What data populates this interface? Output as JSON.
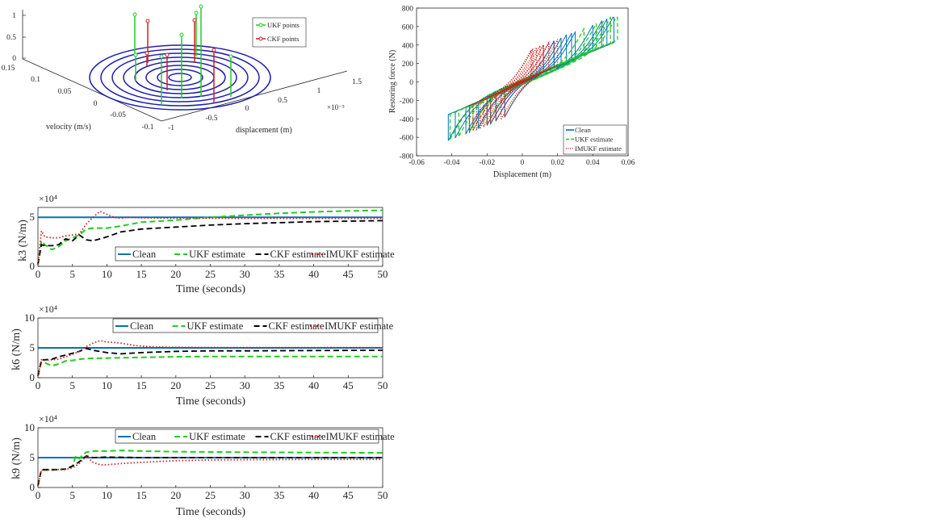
{
  "colors": {
    "clean": "#0072bd",
    "ukf": "#22cc22",
    "ckf": "#000000",
    "imukf": "#cc2020",
    "ellipse": "#1f1fb0",
    "ukf_point": "#22cc22",
    "ckf_point": "#cc2020"
  },
  "chart_data": [
    {
      "id": "sigma3d",
      "type": "scatter",
      "subtype": "3d-stem",
      "xlabel": "displacement (m)",
      "ylabel": "velocity (m/s)",
      "x_exponent": "×10⁻³",
      "x_ticks": [
        "-1",
        "-0.5",
        "0",
        "0.5",
        "1",
        "1.5"
      ],
      "y_ticks": [
        "-0.1",
        "-0.05",
        "0",
        "0.05",
        "0.1",
        "0.15"
      ],
      "z_ticks": [
        "0",
        "0.5",
        "1"
      ],
      "legend": [
        "UKF points",
        "CKF points"
      ],
      "legend_position": "top-right",
      "contour_rings": 8
    },
    {
      "id": "hysteresis",
      "type": "line",
      "xlabel": "Displacement (m)",
      "ylabel": "Restoring force (N)",
      "xlim": [
        -0.06,
        0.06
      ],
      "ylim": [
        -800,
        800
      ],
      "x_ticks": [
        "-0.06",
        "-0.04",
        "-0.02",
        "0",
        "0.02",
        "0.04",
        "0.06"
      ],
      "y_ticks": [
        "-800",
        "-600",
        "-400",
        "-200",
        "0",
        "200",
        "400",
        "600",
        "800"
      ],
      "legend": [
        "Clean",
        "UKF estimate",
        "IMUKF estimate"
      ],
      "legend_position": "bottom-right",
      "series": [
        {
          "name": "Clean",
          "style": "solid",
          "loops": [
            [
              -0.042,
              0.048,
              20
            ],
            [
              -0.038,
              0.045,
              20
            ],
            [
              -0.03,
              0.04,
              25
            ],
            [
              -0.025,
              0.03,
              20
            ],
            [
              -0.02,
              0.028,
              15
            ],
            [
              -0.015,
              0.022,
              20
            ],
            [
              -0.032,
              0.052,
              15
            ],
            [
              -0.01,
              0.018,
              25
            ],
            [
              -0.018,
              0.025,
              10
            ]
          ]
        },
        {
          "name": "UKF estimate",
          "style": "dashed",
          "loops": [
            [
              -0.041,
              0.054,
              26
            ],
            [
              -0.036,
              0.05,
              22
            ],
            [
              -0.028,
              0.042,
              24
            ],
            [
              -0.02,
              0.035,
              24
            ],
            [
              -0.03,
              0.046,
              30
            ]
          ]
        },
        {
          "name": "IMUKF estimate",
          "style": "dotted",
          "loops": [
            [
              -0.03,
              0.012,
              18
            ],
            [
              -0.024,
              0.018,
              16
            ],
            [
              -0.018,
              0.015,
              20
            ],
            [
              -0.012,
              0.008,
              15
            ],
            [
              -0.028,
              0.02,
              22
            ],
            [
              -0.02,
              0.01,
              12
            ],
            [
              -0.015,
              0.005,
              18
            ],
            [
              -0.026,
              0.015,
              14
            ],
            [
              -0.01,
              0.012,
              20
            ],
            [
              -0.022,
              0.006,
              10
            ]
          ]
        }
      ]
    },
    {
      "id": "k3",
      "type": "line",
      "xlabel": "Time (seconds)",
      "ylabel": "k3 (N/m)",
      "y_exponent": "×10⁴",
      "xlim": [
        0,
        50
      ],
      "ylim": [
        0,
        6
      ],
      "x_ticks": [
        "0",
        "5",
        "10",
        "15",
        "20",
        "25",
        "30",
        "35",
        "40",
        "45",
        "50"
      ],
      "y_ticks": [
        {
          "v": 0,
          "t": "0"
        },
        {
          "v": 5,
          "t": "5"
        }
      ],
      "legend_position": "bottom-right",
      "series": [
        {
          "name": "Clean",
          "style": "solid",
          "x": [
            0,
            50
          ],
          "y": [
            5,
            5
          ]
        },
        {
          "name": "UKF estimate",
          "style": "dashed",
          "x": [
            0,
            0.5,
            1,
            2,
            3,
            4,
            5,
            6,
            7,
            8,
            10,
            12,
            15,
            20,
            25,
            30,
            35,
            40,
            45,
            50
          ],
          "y": [
            0.2,
            2.6,
            2.2,
            1.7,
            2.0,
            2.6,
            2.9,
            3.2,
            3.8,
            3.9,
            3.9,
            4.1,
            4.5,
            4.7,
            5.0,
            5.2,
            5.4,
            5.55,
            5.65,
            5.7
          ]
        },
        {
          "name": "CKF estimate",
          "style": "dashed",
          "x": [
            0,
            0.5,
            1,
            2,
            3,
            4,
            5,
            6,
            7,
            8,
            10,
            12,
            15,
            20,
            25,
            30,
            35,
            40,
            45,
            50
          ],
          "y": [
            0.2,
            2.2,
            2.1,
            2.1,
            2.2,
            2.8,
            2.6,
            3.2,
            2.7,
            2.6,
            3.0,
            3.5,
            3.8,
            4.0,
            4.2,
            4.35,
            4.45,
            4.55,
            4.6,
            4.65
          ]
        },
        {
          "name": "IMUKF estimate",
          "style": "dotted",
          "x": [
            0,
            0.5,
            1,
            2,
            3,
            4,
            5,
            6,
            7,
            8,
            9,
            10,
            11,
            12,
            13,
            15,
            20,
            25,
            30,
            35,
            40,
            45,
            50
          ],
          "y": [
            0.2,
            3.6,
            3.0,
            2.9,
            2.9,
            3.1,
            3.2,
            3.3,
            4.3,
            5.0,
            5.6,
            5.3,
            5.0,
            4.9,
            5.0,
            4.95,
            4.9,
            4.9,
            4.88,
            4.88,
            4.88,
            4.88,
            4.88
          ]
        }
      ]
    },
    {
      "id": "k6",
      "type": "line",
      "xlabel": "Time (seconds)",
      "ylabel": "k6 (N/m)",
      "y_exponent": "×10⁴",
      "xlim": [
        0,
        50
      ],
      "ylim": [
        0,
        10
      ],
      "x_ticks": [
        "0",
        "5",
        "10",
        "15",
        "20",
        "25",
        "30",
        "35",
        "40",
        "45",
        "50"
      ],
      "y_ticks": [
        {
          "v": 0,
          "t": "0"
        },
        {
          "v": 5,
          "t": "5"
        },
        {
          "v": 10,
          "t": "10"
        }
      ],
      "legend_position": "top-right",
      "series": [
        {
          "name": "Clean",
          "style": "solid",
          "x": [
            0,
            50
          ],
          "y": [
            5,
            5
          ]
        },
        {
          "name": "UKF estimate",
          "style": "dashed",
          "x": [
            0,
            0.5,
            1,
            2,
            3,
            4,
            5,
            6,
            7,
            8,
            10,
            15,
            20,
            25,
            30,
            40,
            50
          ],
          "y": [
            0.3,
            2.6,
            2.5,
            2.0,
            2.3,
            2.8,
            2.9,
            3.1,
            3.2,
            3.25,
            3.3,
            3.4,
            3.5,
            3.55,
            3.55,
            3.55,
            3.55
          ]
        },
        {
          "name": "CKF estimate",
          "style": "dashed",
          "x": [
            0,
            0.5,
            1,
            2,
            3,
            4,
            5,
            6,
            7,
            8,
            10,
            12,
            15,
            20,
            25,
            30,
            40,
            50
          ],
          "y": [
            0.3,
            3.0,
            3.0,
            3.1,
            3.5,
            3.8,
            4.1,
            4.4,
            4.9,
            4.6,
            4.2,
            4.0,
            4.2,
            4.4,
            4.5,
            4.5,
            4.55,
            4.6
          ]
        },
        {
          "name": "IMUKF estimate",
          "style": "dotted",
          "x": [
            0,
            0.5,
            1,
            2,
            3,
            4,
            5,
            6,
            7,
            8,
            9,
            10,
            12,
            14,
            16,
            20,
            25,
            30,
            40,
            50
          ],
          "y": [
            0.3,
            3.0,
            2.9,
            3.0,
            3.1,
            3.5,
            3.9,
            4.4,
            5.2,
            5.8,
            6.2,
            6.0,
            5.8,
            5.4,
            5.2,
            5.1,
            5.05,
            5.05,
            5.05,
            5.05
          ]
        }
      ]
    },
    {
      "id": "k9",
      "type": "line",
      "xlabel": "Time (seconds)",
      "ylabel": "k9 (N/m)",
      "y_exponent": "×10⁴",
      "xlim": [
        0,
        50
      ],
      "ylim": [
        0,
        10
      ],
      "x_ticks": [
        "0",
        "5",
        "10",
        "15",
        "20",
        "25",
        "30",
        "35",
        "40",
        "45",
        "50"
      ],
      "y_ticks": [
        {
          "v": 0,
          "t": "0"
        },
        {
          "v": 5,
          "t": "5"
        },
        {
          "v": 10,
          "t": "10"
        }
      ],
      "legend_position": "top-right",
      "series": [
        {
          "name": "Clean",
          "style": "solid",
          "x": [
            0,
            50
          ],
          "y": [
            5,
            5
          ]
        },
        {
          "name": "UKF estimate",
          "style": "dashed",
          "x": [
            0,
            0.5,
            1,
            2,
            3,
            4,
            5,
            5.5,
            6,
            6.5,
            7,
            8,
            10,
            12,
            15,
            20,
            25,
            30,
            40,
            50
          ],
          "y": [
            0.3,
            3.0,
            2.9,
            2.9,
            3.0,
            3.1,
            3.5,
            5.3,
            4.8,
            5.5,
            5.9,
            6.1,
            6.1,
            6.2,
            6.1,
            6.0,
            5.95,
            5.9,
            5.85,
            5.8
          ]
        },
        {
          "name": "CKF estimate",
          "style": "dashed",
          "x": [
            0,
            0.5,
            1,
            2,
            3,
            4,
            5,
            6,
            7,
            8,
            10,
            15,
            20,
            30,
            40,
            50
          ],
          "y": [
            0.3,
            3.0,
            3.0,
            3.0,
            3.0,
            3.1,
            3.6,
            4.3,
            5.3,
            5.0,
            5.1,
            5.0,
            5.0,
            5.0,
            5.0,
            5.0
          ]
        },
        {
          "name": "IMUKF estimate",
          "style": "dotted",
          "x": [
            0,
            0.5,
            1,
            2,
            3,
            4,
            5,
            6,
            7,
            8,
            9,
            10,
            12,
            15,
            20,
            25,
            30,
            40,
            50
          ],
          "y": [
            0.3,
            2.9,
            2.9,
            3.0,
            3.0,
            3.0,
            3.3,
            4.0,
            5.3,
            4.2,
            3.8,
            3.8,
            4.0,
            4.2,
            4.5,
            4.6,
            4.65,
            4.7,
            4.7
          ]
        }
      ]
    }
  ]
}
